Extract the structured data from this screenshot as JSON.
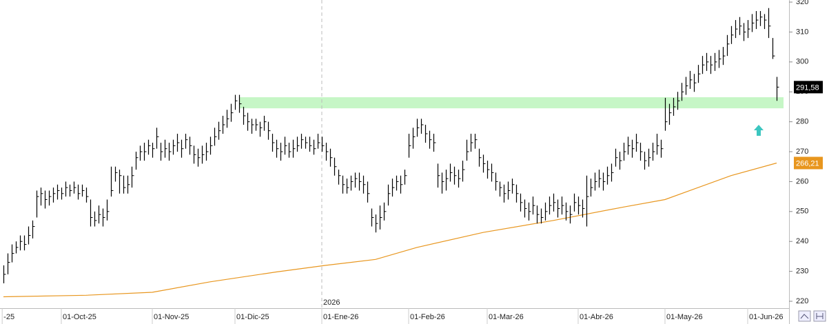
{
  "chart_data": {
    "type": "ohlc",
    "xlim": [
      -0.83,
      190
    ],
    "ylim": [
      217.7,
      320.7
    ],
    "yticks": [
      220,
      230,
      240,
      250,
      260,
      270,
      280,
      290,
      300,
      310,
      320
    ],
    "xticks": [
      {
        "value": -0.3,
        "label": "-25"
      },
      {
        "value": 14,
        "label": "01-Oct-25"
      },
      {
        "value": 36,
        "label": "01-Nov-25"
      },
      {
        "value": 56,
        "label": "01-Dic-25"
      },
      {
        "value": 77,
        "label": "01-Ene-26"
      },
      {
        "value": 98,
        "label": "01-Feb-26"
      },
      {
        "value": 117,
        "label": "01-Mar-26"
      },
      {
        "value": 139,
        "label": "01-Abr-26"
      },
      {
        "value": 160,
        "label": "01-May-26"
      },
      {
        "value": 180,
        "label": "01-Jun-26"
      }
    ],
    "year_marker": {
      "value": 77,
      "label": "2026"
    },
    "series": [
      {
        "color": "#000000",
        "high": [
          232,
          236,
          239,
          240,
          242,
          242,
          245,
          247,
          257,
          258,
          257,
          257,
          258,
          259,
          258,
          260,
          259,
          260,
          259,
          259,
          258,
          254,
          250,
          252,
          251,
          254,
          265,
          265,
          264,
          262,
          262,
          265,
          270,
          272,
          273,
          274,
          273,
          278,
          273,
          274,
          273,
          274,
          276,
          274,
          276,
          275,
          272,
          271,
          272,
          273,
          275,
          278,
          280,
          282,
          284,
          286,
          289,
          289,
          285,
          283,
          281,
          281,
          280,
          282,
          280,
          276,
          274,
          273,
          275,
          273,
          274,
          275,
          276,
          275,
          275,
          274,
          276,
          275,
          273,
          271,
          268,
          264,
          262,
          261,
          262,
          263,
          263,
          262,
          260,
          251,
          249,
          252,
          253,
          259,
          261,
          262,
          262,
          264,
          276,
          278,
          281,
          281,
          279,
          277,
          276,
          266,
          263,
          264,
          266,
          265,
          264,
          267,
          274,
          276,
          276,
          271,
          269,
          267,
          266,
          263,
          260,
          259,
          260,
          261,
          259,
          256,
          254,
          253,
          255,
          252,
          251,
          253,
          255,
          256,
          254,
          255,
          253,
          252,
          256,
          255,
          254,
          262,
          261,
          263,
          264,
          263,
          265,
          266,
          271,
          270,
          273,
          275,
          274,
          276,
          273,
          270,
          271,
          273,
          276,
          274,
          288,
          286,
          288,
          290,
          293,
          295,
          297,
          296,
          299,
          302,
          303,
          302,
          303,
          304,
          305,
          309,
          312,
          314,
          315,
          313,
          314,
          316,
          317,
          317,
          316,
          318,
          308,
          295
        ],
        "low": [
          226,
          229,
          233,
          236,
          237,
          237,
          239,
          241,
          248,
          252,
          251,
          252,
          253,
          254,
          254,
          255,
          255,
          256,
          254,
          255,
          253,
          245,
          245,
          246,
          245,
          247,
          255,
          260,
          256,
          256,
          256,
          258,
          264,
          267,
          267,
          269,
          268,
          271,
          267,
          268,
          267,
          269,
          270,
          268,
          271,
          269,
          266,
          265,
          266,
          267,
          269,
          272,
          274,
          276,
          278,
          280,
          284,
          283,
          279,
          277,
          276,
          277,
          275,
          277,
          274,
          270,
          268,
          267,
          269,
          268,
          268,
          270,
          271,
          271,
          270,
          269,
          271,
          270,
          267,
          265,
          262,
          259,
          256,
          256,
          257,
          258,
          257,
          256,
          253,
          245,
          243,
          244,
          247,
          252,
          255,
          257,
          256,
          259,
          268,
          271,
          275,
          276,
          273,
          271,
          270,
          258,
          256,
          257,
          260,
          259,
          258,
          260,
          267,
          270,
          271,
          265,
          263,
          261,
          260,
          257,
          255,
          253,
          254,
          256,
          253,
          250,
          248,
          247,
          249,
          246,
          246,
          247,
          249,
          250,
          248,
          249,
          247,
          246,
          250,
          249,
          248,
          245,
          255,
          257,
          258,
          257,
          259,
          260,
          265,
          264,
          267,
          269,
          268,
          270,
          267,
          264,
          265,
          267,
          269,
          268,
          277,
          279,
          282,
          284,
          287,
          289,
          291,
          290,
          293,
          296,
          297,
          296,
          297,
          298,
          299,
          302,
          306,
          308,
          309,
          307,
          308,
          310,
          311,
          312,
          311,
          308,
          301,
          287
        ],
        "close": [
          229,
          233,
          236,
          238,
          240,
          239,
          242,
          245,
          255,
          256,
          254,
          255,
          256,
          257,
          256,
          258,
          257,
          258,
          256,
          257,
          255,
          248,
          247,
          249,
          248,
          250,
          257,
          263,
          262,
          258,
          259,
          262,
          268,
          270,
          270,
          272,
          271,
          275,
          270,
          271,
          270,
          272,
          273,
          271,
          274,
          272,
          269,
          268,
          269,
          270,
          272,
          275,
          277,
          279,
          281,
          283,
          287,
          286,
          282,
          280,
          279,
          279,
          278,
          280,
          277,
          273,
          271,
          270,
          272,
          270,
          271,
          272,
          274,
          273,
          272,
          271,
          273,
          272,
          270,
          268,
          265,
          262,
          259,
          258,
          260,
          261,
          260,
          259,
          256,
          248,
          246,
          248,
          250,
          256,
          258,
          260,
          259,
          262,
          272,
          275,
          278,
          279,
          276,
          274,
          273,
          262,
          260,
          261,
          263,
          262,
          261,
          264,
          270,
          273,
          274,
          268,
          266,
          264,
          263,
          260,
          258,
          256,
          257,
          259,
          256,
          253,
          251,
          250,
          252,
          249,
          248,
          250,
          252,
          253,
          251,
          252,
          250,
          249,
          253,
          252,
          251,
          255,
          258,
          260,
          261,
          260,
          262,
          263,
          268,
          267,
          270,
          272,
          271,
          273,
          270,
          267,
          268,
          270,
          272,
          271,
          280,
          283,
          285,
          287,
          290,
          292,
          294,
          293,
          296,
          299,
          300,
          299,
          300,
          301,
          302,
          306,
          309,
          311,
          312,
          310,
          311,
          313,
          314,
          315,
          314,
          312,
          302,
          291.58
        ],
        "last_value_label": "291,58"
      }
    ],
    "ma": {
      "color": "#e8961e",
      "x": [
        0,
        20,
        36,
        50,
        66,
        78,
        90,
        100,
        116,
        133,
        150,
        160,
        166,
        176,
        187
      ],
      "values": [
        221.5,
        222,
        223,
        226.5,
        229.8,
        232,
        234,
        238,
        243,
        247,
        251.5,
        254,
        257,
        262,
        266.21
      ],
      "last_value_label": "266,21"
    },
    "zone": {
      "x_start": 57,
      "from": 284.5,
      "to": 288.2,
      "color": "#c6f6c6"
    }
  }
}
